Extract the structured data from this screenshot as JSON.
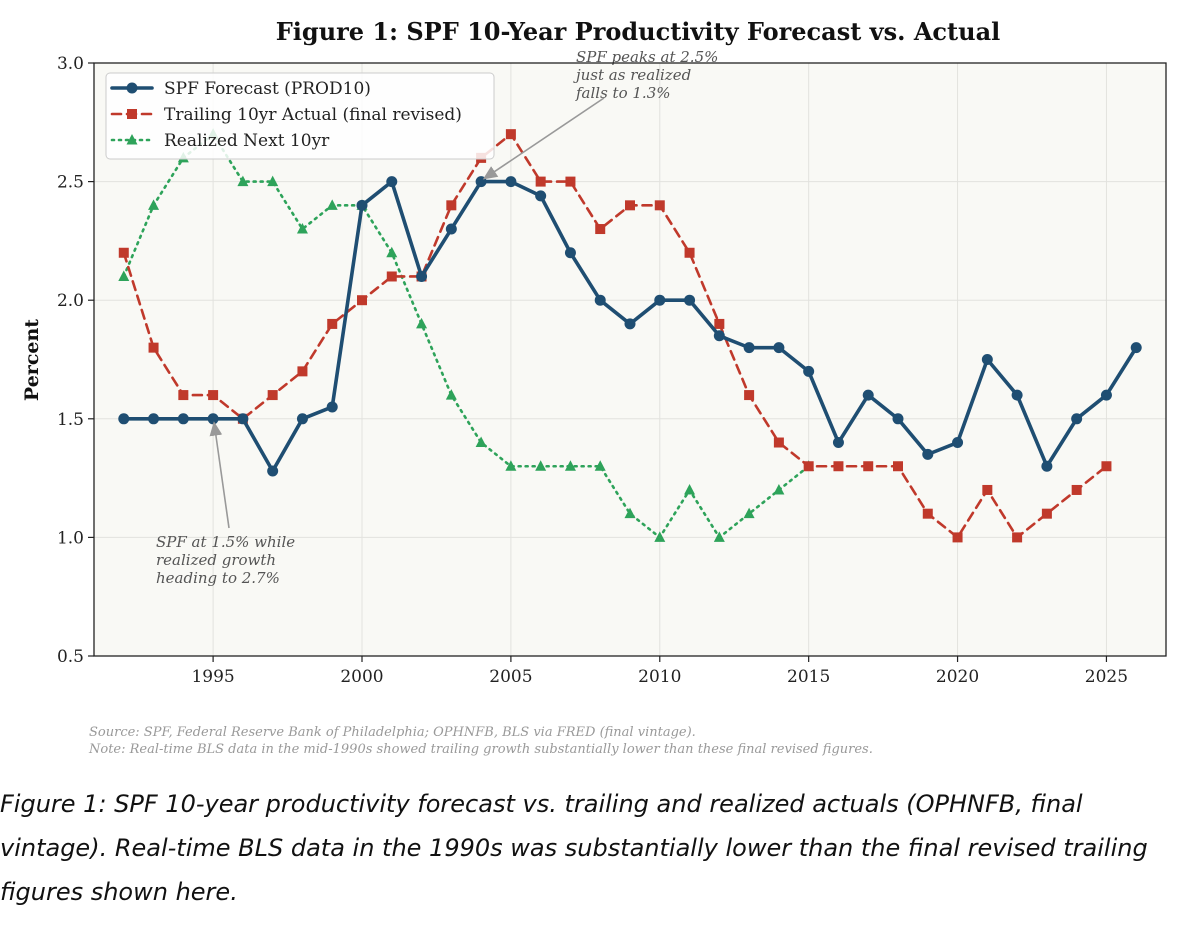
{
  "chart_data": {
    "type": "line",
    "title": "Figure 1: SPF 10-Year Productivity Forecast vs. Actual",
    "ylabel": "Percent",
    "xlabel": "",
    "xlim": [
      1991,
      2027
    ],
    "ylim": [
      0.5,
      3.0
    ],
    "x_ticks": [
      1995,
      2000,
      2005,
      2010,
      2015,
      2020,
      2025
    ],
    "y_ticks": [
      0.5,
      1.0,
      1.5,
      2.0,
      2.5,
      3.0
    ],
    "grid": true,
    "legend_position": "top-left",
    "series": [
      {
        "name": "SPF Forecast (PROD10)",
        "color": "#1f4e72",
        "style": "solid",
        "marker": "circle",
        "x": [
          1992,
          1993,
          1994,
          1995,
          1996,
          1997,
          1998,
          1999,
          2000,
          2001,
          2002,
          2003,
          2004,
          2005,
          2006,
          2007,
          2008,
          2009,
          2010,
          2011,
          2012,
          2013,
          2014,
          2015,
          2016,
          2017,
          2018,
          2019,
          2020,
          2021,
          2022,
          2023,
          2024,
          2025,
          2026
        ],
        "y": [
          1.5,
          1.5,
          1.5,
          1.5,
          1.5,
          1.28,
          1.5,
          1.55,
          2.4,
          2.5,
          2.1,
          2.3,
          2.5,
          2.5,
          2.44,
          2.2,
          2.0,
          1.9,
          2.0,
          2.0,
          1.85,
          1.8,
          1.8,
          1.7,
          1.4,
          1.6,
          1.5,
          1.35,
          1.4,
          1.75,
          1.6,
          1.3,
          1.5,
          1.6,
          1.8
        ]
      },
      {
        "name": "Trailing 10yr Actual (final revised)",
        "color": "#c0392b",
        "style": "dashed",
        "marker": "square",
        "x": [
          1992,
          1993,
          1994,
          1995,
          1996,
          1997,
          1998,
          1999,
          2000,
          2001,
          2002,
          2003,
          2004,
          2005,
          2006,
          2007,
          2008,
          2009,
          2010,
          2011,
          2012,
          2013,
          2014,
          2015,
          2016,
          2017,
          2018,
          2019,
          2020,
          2021,
          2022,
          2023,
          2024,
          2025
        ],
        "y": [
          2.2,
          1.8,
          1.6,
          1.6,
          1.5,
          1.6,
          1.7,
          1.9,
          2.0,
          2.1,
          2.1,
          2.4,
          2.6,
          2.7,
          2.5,
          2.5,
          2.3,
          2.4,
          2.4,
          2.2,
          1.9,
          1.6,
          1.4,
          1.3,
          1.3,
          1.3,
          1.3,
          1.1,
          1.0,
          1.2,
          1.0,
          1.1,
          1.2,
          1.3
        ]
      },
      {
        "name": "Realized Next 10yr",
        "color": "#2ea35a",
        "style": "dotted",
        "marker": "triangle",
        "x": [
          1992,
          1993,
          1994,
          1995,
          1996,
          1997,
          1998,
          1999,
          2000,
          2001,
          2002,
          2003,
          2004,
          2005,
          2006,
          2007,
          2008,
          2009,
          2010,
          2011,
          2012,
          2013,
          2014,
          2015
        ],
        "y": [
          2.1,
          2.4,
          2.6,
          2.7,
          2.5,
          2.5,
          2.3,
          2.4,
          2.4,
          2.2,
          1.9,
          1.6,
          1.4,
          1.3,
          1.3,
          1.3,
          1.3,
          1.1,
          1.0,
          1.2,
          1.0,
          1.1,
          1.2,
          1.3
        ]
      }
    ],
    "annotations": [
      {
        "lines": [
          "SPF peaks at 2.5%",
          "just as realized",
          "falls to 1.3%"
        ],
        "point": [
          2004,
          2.5
        ]
      },
      {
        "lines": [
          "SPF at 1.5% while",
          "realized growth",
          "heading to 2.7%"
        ],
        "point": [
          1995,
          1.5
        ]
      }
    ],
    "notes": [
      "Source: SPF, Federal Reserve Bank of Philadelphia; OPHNFB, BLS via FRED (final vintage).",
      "Note: Real-time BLS data in the mid-1990s showed trailing growth substantially lower than these final revised figures."
    ]
  },
  "caption": "Figure 1: SPF 10-year productivity forecast vs. trailing and realized actuals (OPHNFB, final vintage). Real-time BLS data in the 1990s was substantially lower than the final revised trailing figures shown here."
}
